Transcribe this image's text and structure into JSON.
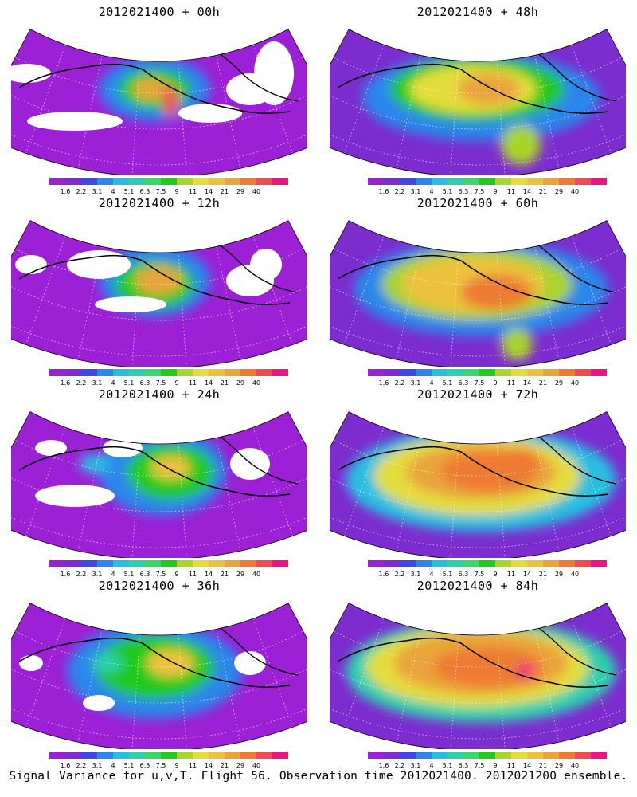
{
  "colorbar": {
    "colors": [
      "#9c20d6",
      "#7d2ccf",
      "#3f45e6",
      "#2c86ea",
      "#27bfe0",
      "#2ecfae",
      "#3bd66c",
      "#24c91d",
      "#a8d42b",
      "#e4de3c",
      "#ecc13d",
      "#e9a43a",
      "#ef7a33",
      "#f24a55",
      "#ef1381"
    ],
    "labels": [
      "1.6",
      "2.2",
      "3.1",
      "4",
      "5.1",
      "6.3",
      "7.5",
      "9",
      "11",
      "14",
      "21",
      "29",
      "40"
    ]
  },
  "panels": [
    {
      "title": "2012021400 + 00h"
    },
    {
      "title": "2012021400 + 48h"
    },
    {
      "title": "2012021400 + 12h"
    },
    {
      "title": "2012021400 + 60h"
    },
    {
      "title": "2012021400 + 24h"
    },
    {
      "title": "2012021400 + 72h"
    },
    {
      "title": "2012021400 + 36h"
    },
    {
      "title": "2012021400 + 84h"
    }
  ],
  "caption": "Signal Variance for u,v,T. Flight 56. Observation time 2012021400. 2012021200 ensemble."
}
